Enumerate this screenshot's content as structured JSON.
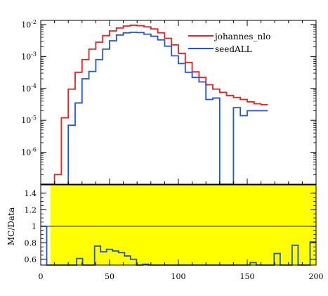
{
  "chart_data": [
    {
      "type": "line",
      "title": "",
      "xlabel": "",
      "ylabel": "",
      "yscale": "log",
      "xlim": [
        0,
        200
      ],
      "ylim": [
        1e-07,
        0.0135
      ],
      "y_tick_labels": [
        {
          "value": 0.01,
          "label": "10^-2"
        },
        {
          "value": 0.001,
          "label": "10^-3"
        },
        {
          "value": 0.0001,
          "label": "10^-4"
        },
        {
          "value": 1e-05,
          "label": "10^-5"
        },
        {
          "value": 1e-06,
          "label": "10^-6"
        }
      ],
      "legend_position": "top-right",
      "bin_edges": [
        0,
        5,
        10,
        15,
        20,
        25,
        30,
        35,
        40,
        45,
        50,
        55,
        60,
        65,
        70,
        75,
        80,
        85,
        90,
        95,
        100,
        105,
        110,
        115,
        120,
        125,
        130,
        135,
        140,
        145,
        150,
        155,
        160,
        165,
        170,
        175,
        180,
        185,
        190,
        195,
        200
      ],
      "series": [
        {
          "name": "johannes_nlo",
          "color": "#e8201f",
          "values": [
            1e-07,
            1e-07,
            2e-07,
            1.2e-05,
            9.5e-05,
            0.00032,
            0.0008,
            0.0017,
            0.0028,
            0.0045,
            0.0063,
            0.0078,
            0.009,
            0.0095,
            0.0092,
            0.0085,
            0.0073,
            0.0055,
            0.0037,
            0.0023,
            0.00125,
            0.00065,
            0.00033,
            0.00022,
            0.00013,
            9.5e-05,
            7.5e-05,
            6e-05,
            5.2e-05,
            4.5e-05,
            3.8e-05,
            3.3e-05,
            3.1e-05
          ]
        },
        {
          "name": "seedALL",
          "color": "#2153e0",
          "values": [
            null,
            null,
            null,
            null,
            7e-06,
            3.5e-05,
            0.0002,
            0.00034,
            0.0008,
            0.0017,
            0.0031,
            0.0047,
            0.0055,
            0.0057,
            0.0056,
            0.005,
            0.0043,
            0.0033,
            0.0021,
            0.00105,
            0.0006,
            0.00032,
            0.00022,
            0.00016,
            4.5e-05,
            5e-05,
            1e-07,
            1e-07,
            2.5e-05,
            1.4e-05,
            2e-05,
            2e-05,
            2e-05
          ]
        }
      ]
    },
    {
      "type": "line",
      "title": "",
      "xlabel": "",
      "ylabel": "MC/Data",
      "xlim": [
        0,
        200
      ],
      "ylim": [
        0.53,
        1.5
      ],
      "x_ticks": [
        0,
        50,
        100,
        150,
        200
      ],
      "y_ticks": [
        0.6,
        0.8,
        1.0,
        1.2,
        1.4
      ],
      "y_tick_labels": [
        "0.6",
        "0.8",
        "1",
        "1.2",
        "1.4"
      ],
      "band": {
        "color": "#ffff00",
        "x": [
          7,
          200
        ],
        "y": [
          0.53,
          1.5
        ]
      },
      "reference_line": 1.0,
      "ratio_values": [
        1.0,
        0.2,
        0.2,
        0.2,
        0.2,
        0.2,
        0.61,
        0.2,
        0.2,
        0.76,
        0.69,
        0.72,
        0.7,
        0.68,
        0.64,
        0.6,
        0.52,
        0.54,
        0.2,
        0.2,
        0.2,
        0.2,
        0.2,
        0.2,
        0.2,
        0.2,
        0.2,
        0.2,
        0.2,
        0.2,
        0.2,
        0.2,
        0.2,
        0.2,
        0.2,
        0.56,
        0.2,
        0.2,
        0.2,
        0.67,
        0.2,
        0.2,
        0.77,
        0.2,
        0.2,
        0.81
      ]
    }
  ]
}
